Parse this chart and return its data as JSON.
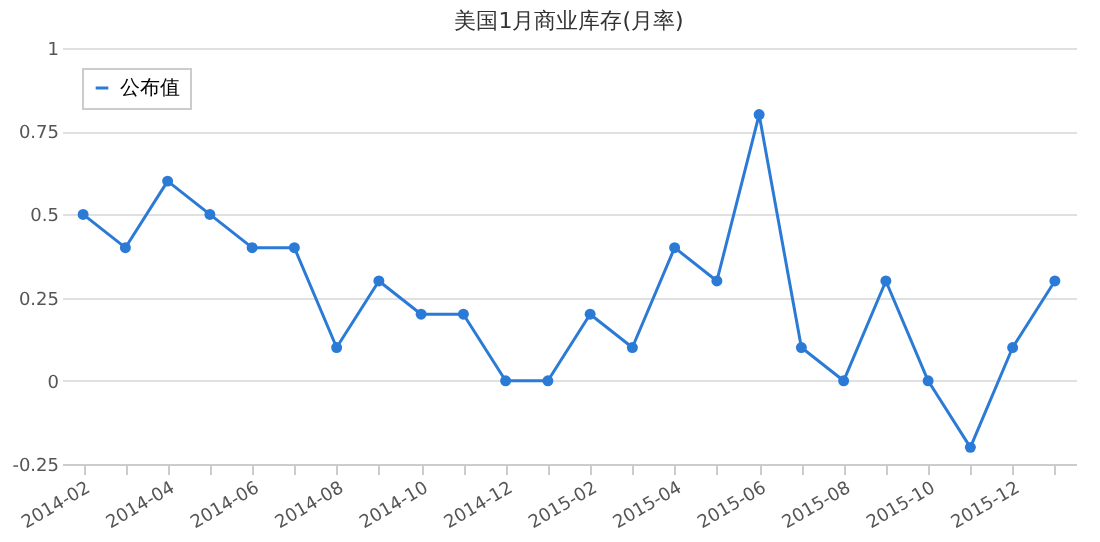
{
  "chart_data": {
    "type": "line",
    "title": "美国1月商业库存(月率)",
    "categories": [
      "2014-02",
      null,
      "2014-04",
      null,
      "2014-06",
      null,
      "2014-08",
      null,
      "2014-10",
      null,
      "2014-12",
      null,
      "2015-02",
      null,
      "2015-04",
      null,
      "2015-06",
      null,
      "2015-08",
      null,
      "2015-10",
      null,
      "2015-12",
      null
    ],
    "series": [
      {
        "name": "公布值",
        "color": "#2b7bd6",
        "values": [
          0.5,
          0.4,
          0.6,
          0.5,
          0.4,
          0.4,
          0.1,
          0.3,
          0.2,
          0.2,
          0,
          0,
          0.2,
          0.1,
          0.4,
          0.3,
          0.8,
          0.1,
          0,
          0.3,
          0,
          -0.2,
          0.1,
          0.3
        ]
      }
    ],
    "ylim": [
      -0.25,
      1
    ],
    "yticks": [
      -0.25,
      0,
      0.25,
      0.5,
      0.75,
      1
    ],
    "grid": "y",
    "legend": "top left",
    "marker": "circle",
    "line_style": "solid"
  }
}
